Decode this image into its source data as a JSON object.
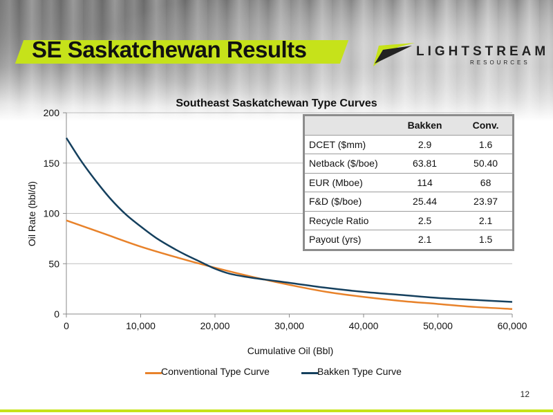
{
  "slide": {
    "title": "SE Saskatchewan Results",
    "page_number": "12",
    "accent_color": "#c6e21a"
  },
  "logo": {
    "text": "LIGHTSTREAM",
    "subtext": "RESOURCES"
  },
  "table": {
    "headers": [
      "",
      "Bakken",
      "Conv."
    ],
    "rows": [
      [
        "DCET ($mm)",
        "2.9",
        "1.6"
      ],
      [
        "Netback ($/boe)",
        "63.81",
        "50.40"
      ],
      [
        "EUR (Mboe)",
        "114",
        "68"
      ],
      [
        "F&D ($/boe)",
        "25.44",
        "23.97"
      ],
      [
        "Recycle Ratio",
        "2.5",
        "2.1"
      ],
      [
        "Payout (yrs)",
        "2.1",
        "1.5"
      ]
    ]
  },
  "chart_data": {
    "type": "line",
    "title": "Southeast Saskatchewan Type Curves",
    "xlabel": "Cumulative Oil (Bbl)",
    "ylabel": "Oil Rate (bbl/d)",
    "xlim": [
      0,
      60000
    ],
    "ylim": [
      0,
      200
    ],
    "x_ticks": [
      "0",
      "10,000",
      "20,000",
      "30,000",
      "40,000",
      "50,000",
      "60,000"
    ],
    "y_ticks": [
      "0",
      "50",
      "100",
      "150",
      "200"
    ],
    "grid": "horizontal",
    "legend_position": "bottom",
    "series": [
      {
        "name": "Conventional Type Curve",
        "color": "#e8822a",
        "x": [
          0,
          5000,
          10000,
          15000,
          20000,
          25000,
          30000,
          35000,
          40000,
          45000,
          50000,
          55000,
          60000
        ],
        "y": [
          93,
          80,
          67,
          56,
          46,
          37,
          29,
          22,
          17,
          13,
          10,
          7,
          5
        ]
      },
      {
        "name": "Bakken Type Curve",
        "color": "#15405e",
        "x": [
          0,
          2000,
          4000,
          6000,
          8000,
          10000,
          12000,
          14000,
          16000,
          18000,
          20000,
          22000,
          25000,
          30000,
          35000,
          40000,
          45000,
          50000,
          55000,
          60000
        ],
        "y": [
          175,
          152,
          132,
          114,
          99,
          87,
          76,
          67,
          59,
          52,
          45,
          40,
          36,
          31,
          26,
          22,
          19,
          16,
          14,
          12
        ]
      }
    ]
  }
}
